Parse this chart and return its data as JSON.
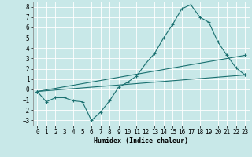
{
  "xlabel": "Humidex (Indice chaleur)",
  "ylabel": "",
  "background_color": "#c8e8e8",
  "grid_color": "#ffffff",
  "line_color": "#1a7070",
  "xlim": [
    -0.5,
    23.5
  ],
  "ylim": [
    -3.5,
    8.5
  ],
  "xticks": [
    0,
    1,
    2,
    3,
    4,
    5,
    6,
    7,
    8,
    9,
    10,
    11,
    12,
    13,
    14,
    15,
    16,
    17,
    18,
    19,
    20,
    21,
    22,
    23
  ],
  "yticks": [
    -3,
    -2,
    -1,
    0,
    1,
    2,
    3,
    4,
    5,
    6,
    7,
    8
  ],
  "line1_x": [
    0,
    1,
    2,
    3,
    4,
    5,
    6,
    7,
    8,
    9,
    10,
    11,
    12,
    13,
    14,
    15,
    16,
    17,
    18,
    19,
    20,
    21,
    22,
    23
  ],
  "line1_y": [
    -0.2,
    -1.2,
    -0.8,
    -0.8,
    -1.1,
    -1.2,
    -3.0,
    -2.2,
    -1.1,
    0.2,
    0.7,
    1.3,
    2.5,
    3.5,
    5.0,
    6.3,
    7.8,
    8.2,
    7.0,
    6.5,
    4.6,
    3.3,
    2.1,
    1.4
  ],
  "line2_x": [
    0,
    23
  ],
  "line2_y": [
    -0.2,
    3.3
  ],
  "line3_x": [
    0,
    23
  ],
  "line3_y": [
    -0.2,
    1.4
  ],
  "marker_size": 3,
  "linewidth": 0.8,
  "xlabel_fontsize": 6,
  "tick_fontsize": 5.5
}
